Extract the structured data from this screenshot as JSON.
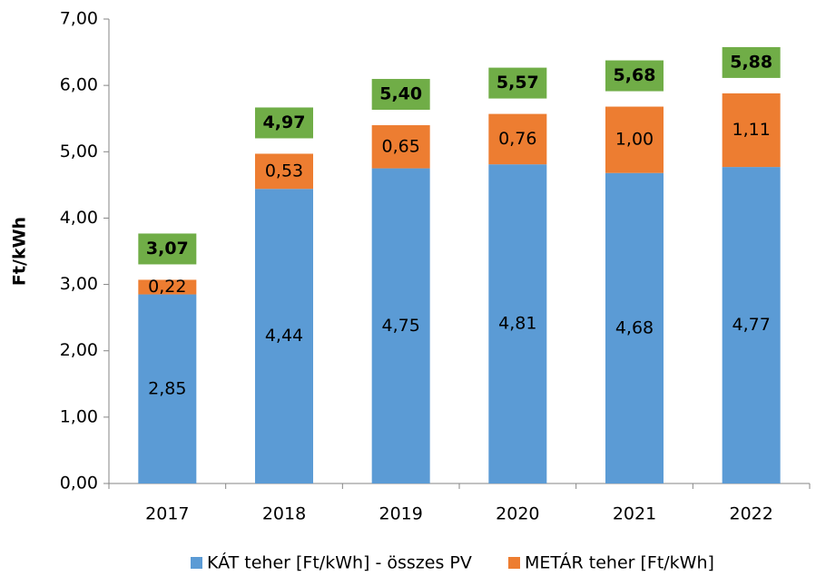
{
  "chart_data": {
    "type": "stacked_bar",
    "y_label": "Ft/kWh",
    "categories": [
      "2017",
      "2018",
      "2019",
      "2020",
      "2021",
      "2022"
    ],
    "series": [
      {
        "name": "KÁT teher [Ft/kWh] - összes PV",
        "color": "#5b9bd5",
        "values": [
          2.85,
          4.44,
          4.75,
          4.81,
          4.68,
          4.77
        ],
        "value_labels": [
          "2,85",
          "4,44",
          "4,75",
          "4,81",
          "4,68",
          "4,77"
        ]
      },
      {
        "name": "METÁR teher [Ft/kWh]",
        "color": "#ed7d31",
        "values": [
          0.22,
          0.53,
          0.65,
          0.76,
          1.0,
          1.11
        ],
        "value_labels": [
          "0,22",
          "0,53",
          "0,65",
          "0,76",
          "1,00",
          "1,11"
        ]
      }
    ],
    "totals": {
      "color": "#70ad47",
      "values": [
        3.07,
        4.97,
        5.4,
        5.57,
        5.68,
        5.88
      ],
      "value_labels": [
        "3,07",
        "4,97",
        "5,40",
        "5,57",
        "5,68",
        "5,88"
      ]
    },
    "ylim": [
      0,
      7
    ],
    "yticks": [
      {
        "value": 0,
        "label": "0,00"
      },
      {
        "value": 1,
        "label": "1,00"
      },
      {
        "value": 2,
        "label": "2,00"
      },
      {
        "value": 3,
        "label": "3,00"
      },
      {
        "value": 4,
        "label": "4,00"
      },
      {
        "value": 5,
        "label": "5,00"
      },
      {
        "value": 6,
        "label": "6,00"
      },
      {
        "value": 7,
        "label": "7,00"
      }
    ],
    "legend": "bottom"
  }
}
